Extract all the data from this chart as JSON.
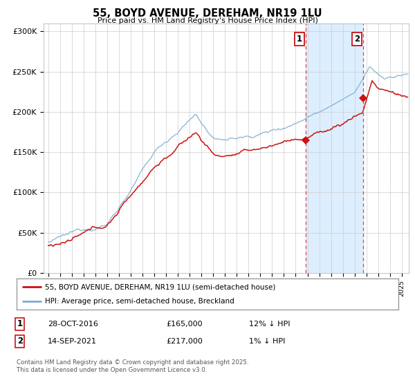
{
  "title": "55, BOYD AVENUE, DEREHAM, NR19 1LU",
  "subtitle": "Price paid vs. HM Land Registry's House Price Index (HPI)",
  "legend_line1": "55, BOYD AVENUE, DEREHAM, NR19 1LU (semi-detached house)",
  "legend_line2": "HPI: Average price, semi-detached house, Breckland",
  "transaction1_date": "28-OCT-2016",
  "transaction1_price": "£165,000",
  "transaction1_hpi": "12% ↓ HPI",
  "transaction2_date": "14-SEP-2021",
  "transaction2_price": "£217,000",
  "transaction2_hpi": "1% ↓ HPI",
  "line1_color": "#cc1111",
  "line2_color": "#7aaad0",
  "marker_color": "#cc1111",
  "shade_color": "#ddeeff",
  "vline_color": "#dd4444",
  "background_color": "#ffffff",
  "footer": "Contains HM Land Registry data © Crown copyright and database right 2025.\nThis data is licensed under the Open Government Licence v3.0.",
  "ylim": [
    0,
    310000
  ],
  "yticks": [
    0,
    50000,
    100000,
    150000,
    200000,
    250000,
    300000
  ],
  "ytick_labels": [
    "£0",
    "£50K",
    "£100K",
    "£150K",
    "£200K",
    "£250K",
    "£300K"
  ],
  "sale1_year_decimal": 2016.833,
  "sale1_price": 165000,
  "sale2_year_decimal": 2021.708,
  "sale2_price": 217000
}
